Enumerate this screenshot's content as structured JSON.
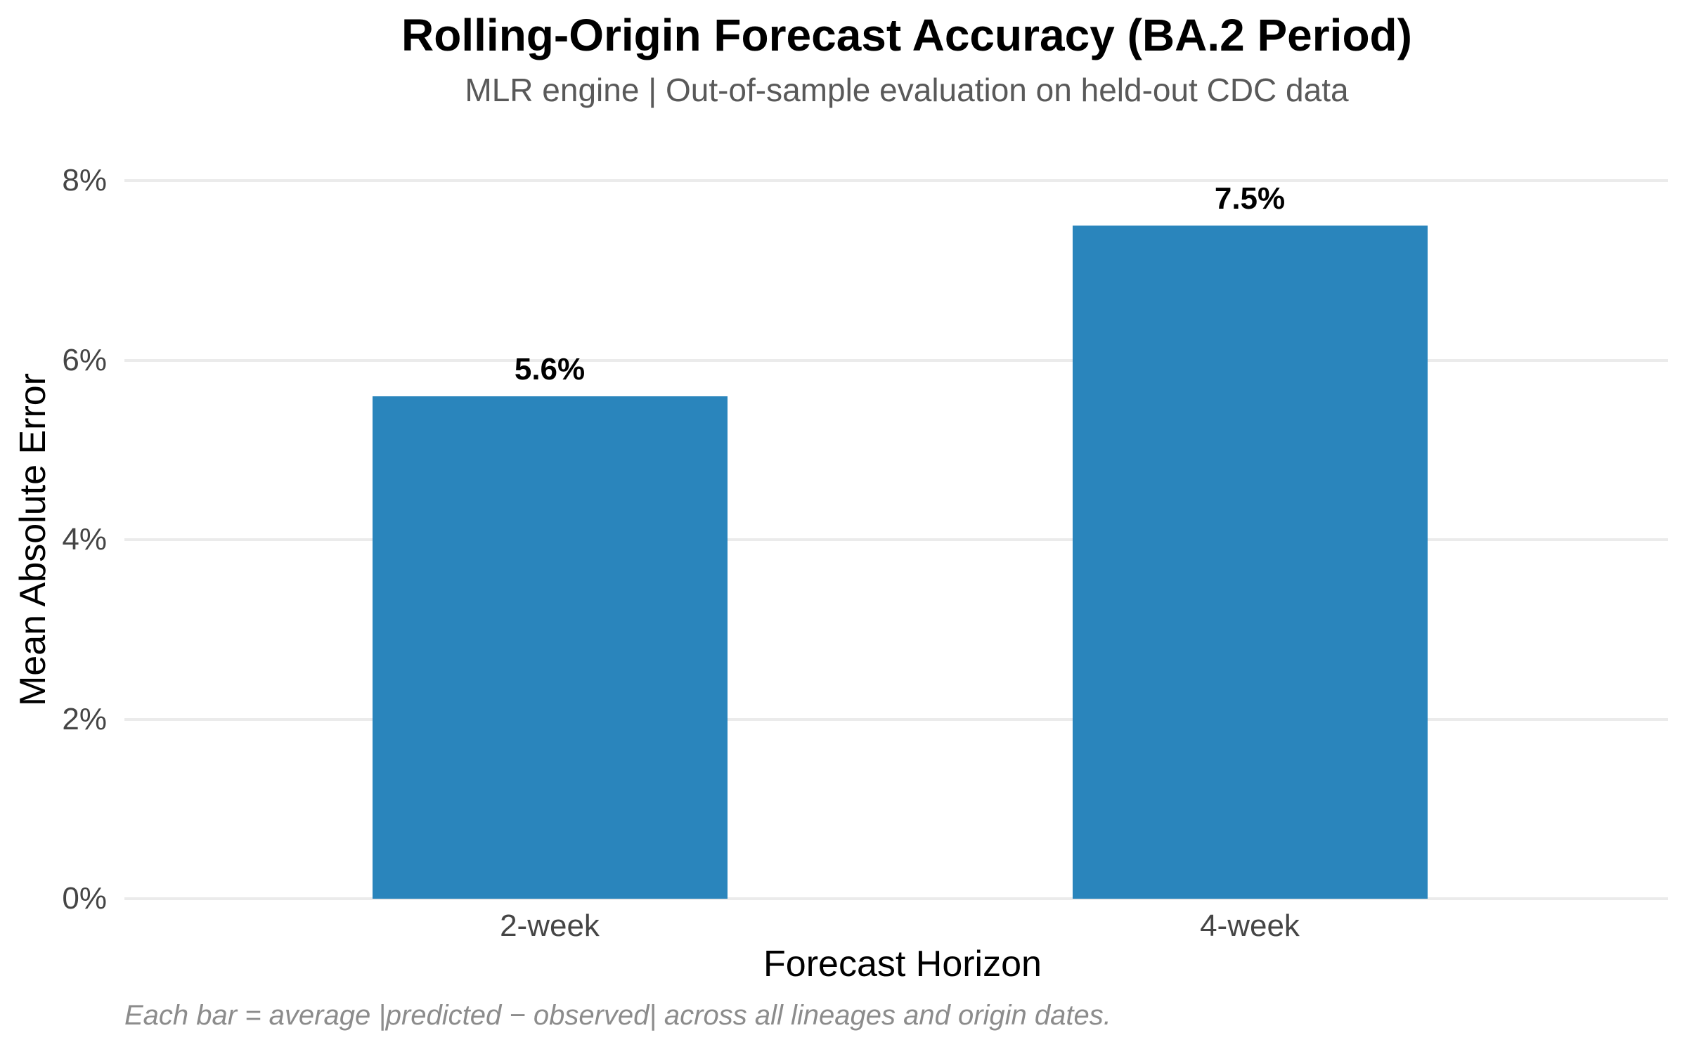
{
  "chart_data": {
    "type": "bar",
    "title": "Rolling-Origin Forecast Accuracy (BA.2 Period)",
    "subtitle": "MLR engine | Out-of-sample evaluation on held-out CDC data",
    "categories": [
      "2-week",
      "4-week"
    ],
    "values": [
      5.6,
      7.5
    ],
    "bar_value_labels": [
      "5.6%",
      "7.5%"
    ],
    "xlabel": "Forecast Horizon",
    "ylabel": "Mean Absolute Error",
    "ylim": [
      0,
      8
    ],
    "yticks": [
      0,
      2,
      4,
      6,
      8
    ],
    "ytick_labels": [
      "0%",
      "2%",
      "4%",
      "6%",
      "8%"
    ],
    "grid": true,
    "legend": false,
    "caption": "Each bar = average |predicted − observed| across all lineages and origin dates.",
    "colors": {
      "bar_fill": "#2A85BC",
      "gridline": "#ebebeb",
      "tick_text": "#454545",
      "subtitle_text": "#595959",
      "caption_text": "#8c8c8c",
      "title_text": "#000000",
      "background": "#ffffff"
    }
  }
}
